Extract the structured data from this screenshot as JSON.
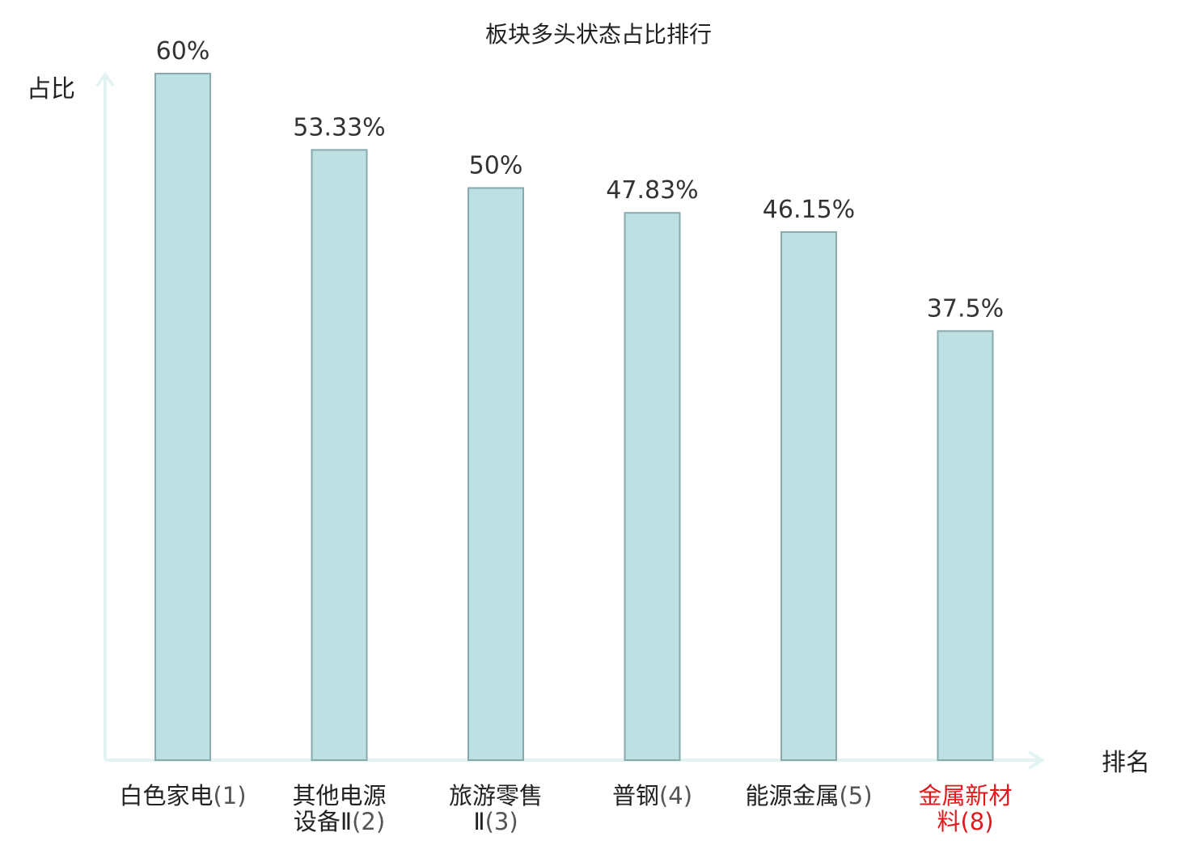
{
  "chart_data": {
    "type": "bar",
    "title": "板块多头状态占比排行",
    "ylabel": "占比",
    "xlabel": "排名",
    "ylim": [
      0,
      60
    ],
    "grid": false,
    "legend": "none",
    "categories": [
      {
        "lines": [
          "白色家电"
        ],
        "rank": "(1)",
        "highlight": false
      },
      {
        "lines": [
          "其他电源",
          "设备Ⅱ"
        ],
        "rank": "(2)",
        "highlight": false
      },
      {
        "lines": [
          "旅游零售",
          "Ⅱ"
        ],
        "rank": "(3)",
        "highlight": false
      },
      {
        "lines": [
          "普钢"
        ],
        "rank": "(4)",
        "highlight": false
      },
      {
        "lines": [
          "能源金属"
        ],
        "rank": "(5)",
        "highlight": false
      },
      {
        "lines": [
          "金属新材",
          "料"
        ],
        "rank": "(8)",
        "highlight": true
      }
    ],
    "values": [
      60,
      53.33,
      50,
      47.83,
      46.15,
      37.5
    ],
    "value_labels": [
      "60%",
      "53.33%",
      "50%",
      "47.83%",
      "46.15%",
      "37.5%"
    ],
    "colors": {
      "bar_fill": "#bde0e3",
      "bar_stroke": "#8aa9ad",
      "axis": "#e3f3f1",
      "highlight_text": "#e0191c",
      "text": "#222222"
    }
  }
}
